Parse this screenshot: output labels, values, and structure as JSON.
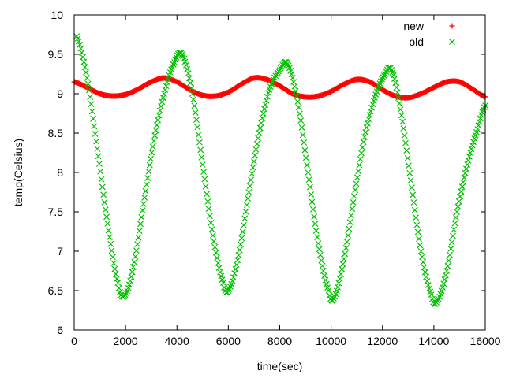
{
  "chart_data": {
    "type": "scatter",
    "xlabel": "time(sec)",
    "ylabel": "temp(Celsius)",
    "xlim": [
      0,
      16000
    ],
    "ylim": [
      6,
      10
    ],
    "x_ticks": [
      0,
      2000,
      4000,
      6000,
      8000,
      10000,
      12000,
      14000,
      16000
    ],
    "y_ticks": [
      6,
      6.5,
      7,
      7.5,
      8,
      8.5,
      9,
      9.5,
      10
    ],
    "y_tick_labels": [
      "6",
      "6.5",
      "7",
      "7.5",
      "8",
      "8.5",
      "9",
      "9.5",
      "10"
    ],
    "grid": false,
    "legend_position": "top-right",
    "series": [
      {
        "name": "new",
        "marker": "+",
        "color": "#ff0000",
        "points": [
          [
            0,
            9.15
          ],
          [
            500,
            9.08
          ],
          [
            1000,
            9.0
          ],
          [
            1500,
            8.97
          ],
          [
            2000,
            8.99
          ],
          [
            2500,
            9.06
          ],
          [
            3000,
            9.15
          ],
          [
            3500,
            9.2
          ],
          [
            4000,
            9.15
          ],
          [
            4500,
            9.05
          ],
          [
            5000,
            8.98
          ],
          [
            5500,
            8.97
          ],
          [
            6000,
            9.02
          ],
          [
            6500,
            9.12
          ],
          [
            7000,
            9.2
          ],
          [
            7500,
            9.18
          ],
          [
            8000,
            9.1
          ],
          [
            8500,
            9.0
          ],
          [
            9000,
            8.96
          ],
          [
            9500,
            8.97
          ],
          [
            10000,
            9.03
          ],
          [
            10500,
            9.12
          ],
          [
            11000,
            9.18
          ],
          [
            11500,
            9.15
          ],
          [
            12000,
            9.05
          ],
          [
            12500,
            8.97
          ],
          [
            13000,
            8.95
          ],
          [
            13500,
            9.0
          ],
          [
            14000,
            9.08
          ],
          [
            14500,
            9.15
          ],
          [
            15000,
            9.15
          ],
          [
            15500,
            9.06
          ],
          [
            16000,
            8.96
          ]
        ]
      },
      {
        "name": "old",
        "marker": "x",
        "color": "#00c000",
        "points": [
          [
            100,
            9.73
          ],
          [
            500,
            9.2
          ],
          [
            900,
            8.3
          ],
          [
            1300,
            7.35
          ],
          [
            1700,
            6.6
          ],
          [
            1950,
            6.43
          ],
          [
            2300,
            6.8
          ],
          [
            2700,
            7.6
          ],
          [
            3100,
            8.4
          ],
          [
            3500,
            9.0
          ],
          [
            3900,
            9.4
          ],
          [
            4200,
            9.5
          ],
          [
            4600,
            9.0
          ],
          [
            5000,
            8.1
          ],
          [
            5400,
            7.2
          ],
          [
            5800,
            6.6
          ],
          [
            6000,
            6.5
          ],
          [
            6400,
            6.95
          ],
          [
            6800,
            7.75
          ],
          [
            7200,
            8.5
          ],
          [
            7600,
            9.05
          ],
          [
            8000,
            9.3
          ],
          [
            8300,
            9.38
          ],
          [
            8700,
            8.9
          ],
          [
            9100,
            8.0
          ],
          [
            9500,
            7.1
          ],
          [
            9900,
            6.5
          ],
          [
            10100,
            6.4
          ],
          [
            10500,
            6.9
          ],
          [
            10900,
            7.7
          ],
          [
            11300,
            8.45
          ],
          [
            11700,
            8.95
          ],
          [
            12100,
            9.25
          ],
          [
            12350,
            9.3
          ],
          [
            12700,
            8.8
          ],
          [
            13100,
            7.9
          ],
          [
            13500,
            7.0
          ],
          [
            13900,
            6.45
          ],
          [
            14100,
            6.35
          ],
          [
            14500,
            6.75
          ],
          [
            14900,
            7.5
          ],
          [
            15300,
            8.1
          ],
          [
            15700,
            8.55
          ],
          [
            16000,
            8.85
          ]
        ]
      }
    ]
  }
}
